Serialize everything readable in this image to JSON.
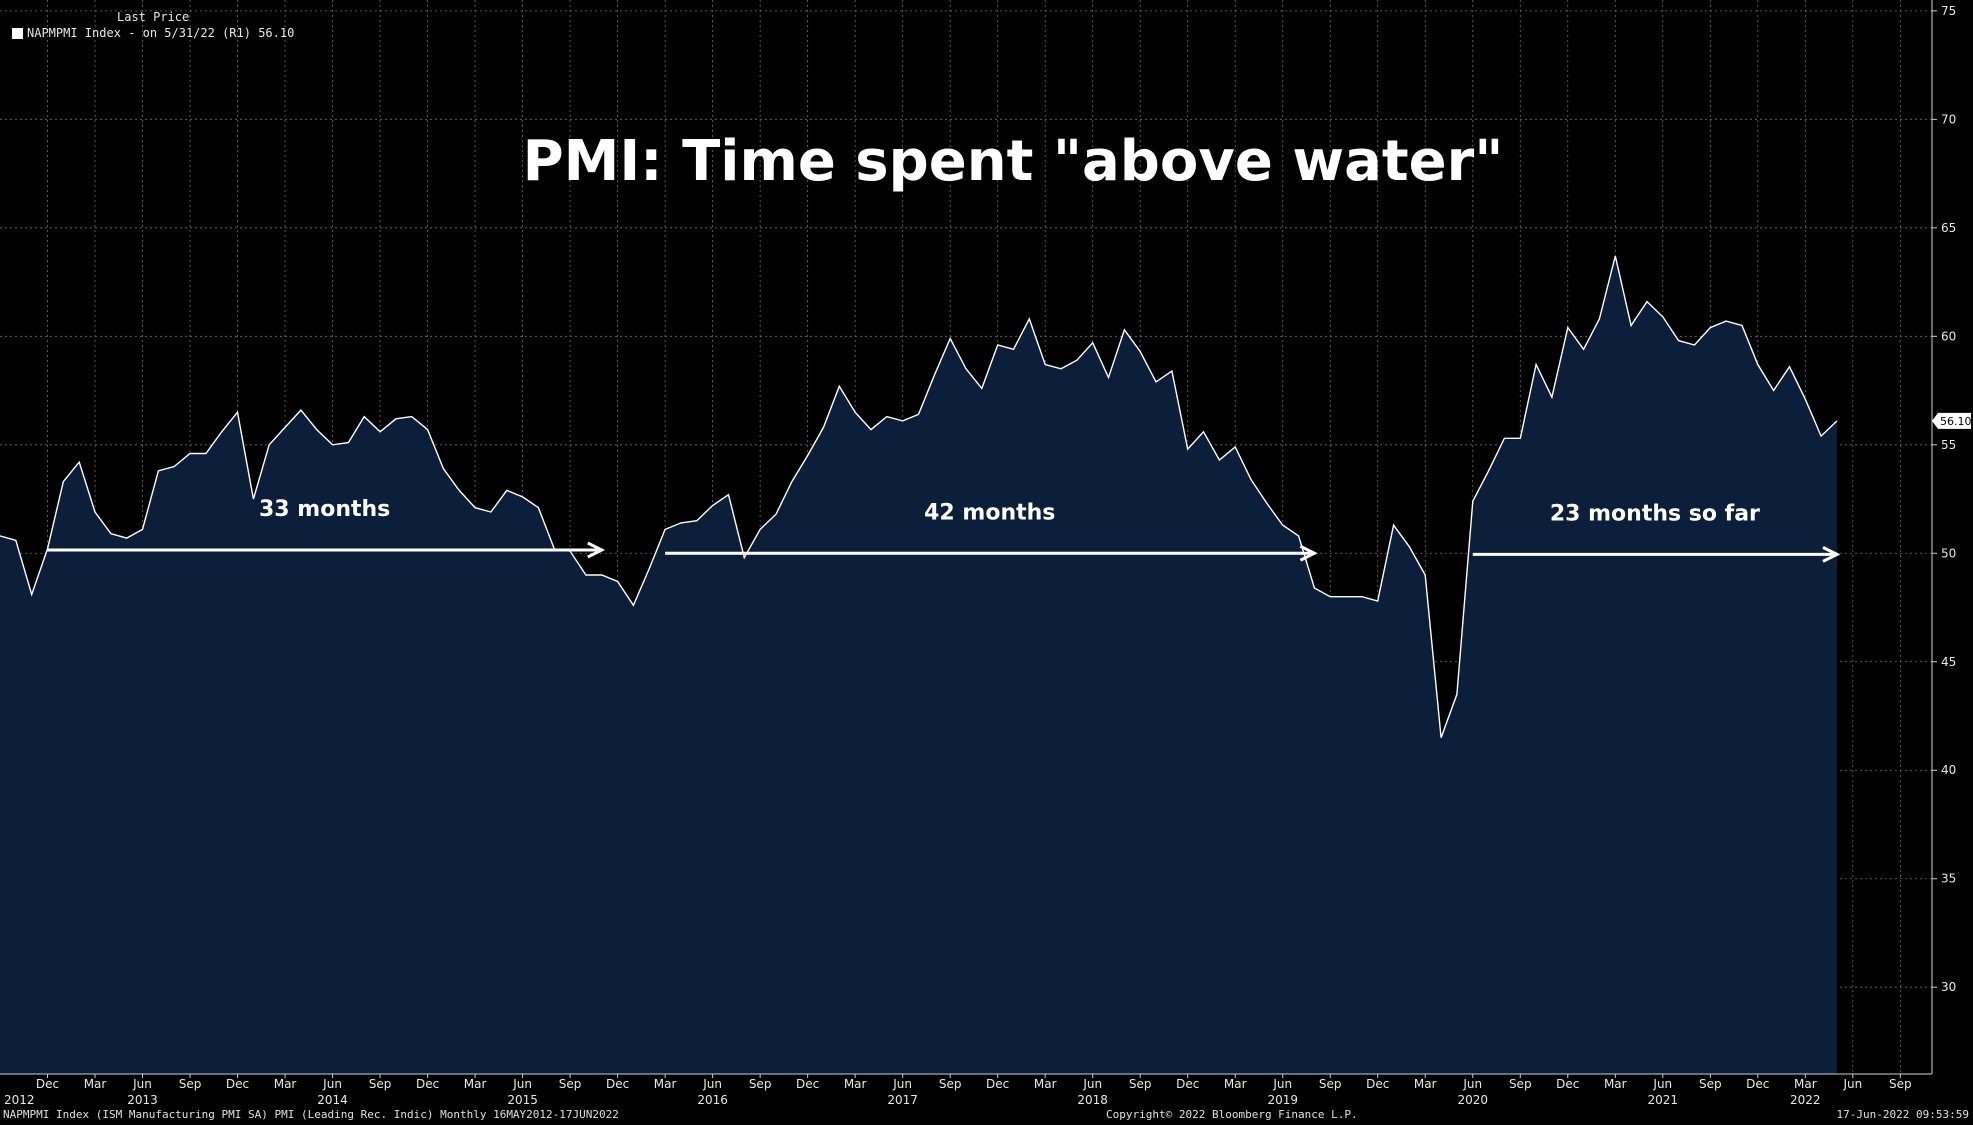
{
  "legend": {
    "header": "Last Price",
    "entry": "NAPMPMI Index -  on 5/31/22  (R1) 56.10"
  },
  "last_value_label": "56.10",
  "footer": {
    "left": "NAPMPMI Index (ISM Manufacturing PMI SA) PMI (Leading Rec. Indic)  Monthly 16MAY2012-17JUN2022",
    "center": "Copyright© 2022 Bloomberg Finance L.P.",
    "right": "17-Jun-2022 09:53:59"
  },
  "colors": {
    "background": "#000000",
    "area_fill": "#0b1f3b",
    "line": "#ffffff",
    "grid": "#7a7a7a"
  },
  "chart_data": {
    "type": "area",
    "title": "PMI: Time spent \"above water\"",
    "y_axis_position": "right",
    "ylim": [
      26,
      75.5
    ],
    "yticks": [
      30,
      35,
      40,
      45,
      50,
      55,
      60,
      65,
      70,
      75
    ],
    "x_start": "2012-09",
    "x_end": "2022-11",
    "series": [
      {
        "x": [
          "2012-09",
          "2012-10",
          "2012-11",
          "2012-12",
          "2013-01",
          "2013-02",
          "2013-03",
          "2013-04",
          "2013-05",
          "2013-06",
          "2013-07",
          "2013-08",
          "2013-09",
          "2013-10",
          "2013-11",
          "2013-12",
          "2014-01",
          "2014-02",
          "2014-03",
          "2014-04",
          "2014-05",
          "2014-06",
          "2014-07",
          "2014-08",
          "2014-09",
          "2014-10",
          "2014-11",
          "2014-12",
          "2015-01",
          "2015-02",
          "2015-03",
          "2015-04",
          "2015-05",
          "2015-06",
          "2015-07",
          "2015-08",
          "2015-09",
          "2015-10",
          "2015-11",
          "2015-12",
          "2016-01",
          "2016-02",
          "2016-03",
          "2016-04",
          "2016-05",
          "2016-06",
          "2016-07",
          "2016-08",
          "2016-09",
          "2016-10",
          "2016-11",
          "2016-12",
          "2017-01",
          "2017-02",
          "2017-03",
          "2017-04",
          "2017-05",
          "2017-06",
          "2017-07",
          "2017-08",
          "2017-09",
          "2017-10",
          "2017-11",
          "2017-12",
          "2018-01",
          "2018-02",
          "2018-03",
          "2018-04",
          "2018-05",
          "2018-06",
          "2018-07",
          "2018-08",
          "2018-09",
          "2018-10",
          "2018-11",
          "2018-12",
          "2019-01",
          "2019-02",
          "2019-03",
          "2019-04",
          "2019-05",
          "2019-06",
          "2019-07",
          "2019-08",
          "2019-09",
          "2019-10",
          "2019-11",
          "2019-12",
          "2020-01",
          "2020-02",
          "2020-03",
          "2020-04",
          "2020-05",
          "2020-06",
          "2020-07",
          "2020-08",
          "2020-09",
          "2020-10",
          "2020-11",
          "2020-12",
          "2021-01",
          "2021-02",
          "2021-03",
          "2021-04",
          "2021-05",
          "2021-06",
          "2021-07",
          "2021-08",
          "2021-09",
          "2021-10",
          "2021-11",
          "2021-12",
          "2022-01",
          "2022-02",
          "2022-03",
          "2022-04",
          "2022-05"
        ],
        "values": [
          50.8,
          50.6,
          48.1,
          50.2,
          53.3,
          54.2,
          51.9,
          50.9,
          50.7,
          51.1,
          53.8,
          54.0,
          54.6,
          54.6,
          55.6,
          56.5,
          52.5,
          55.0,
          55.8,
          56.6,
          55.7,
          55.0,
          55.1,
          56.3,
          55.6,
          56.2,
          56.3,
          55.7,
          53.9,
          52.9,
          52.1,
          51.9,
          52.9,
          52.6,
          52.1,
          50.2,
          50.1,
          49.0,
          49.0,
          48.7,
          47.6,
          49.3,
          51.1,
          51.4,
          51.5,
          52.2,
          52.7,
          49.8,
          51.1,
          51.8,
          53.3,
          54.5,
          55.8,
          57.7,
          56.5,
          55.7,
          56.3,
          56.1,
          56.4,
          58.2,
          59.9,
          58.5,
          57.6,
          59.6,
          59.4,
          60.8,
          58.7,
          58.5,
          58.9,
          59.7,
          58.1,
          60.3,
          59.3,
          57.9,
          58.4,
          54.8,
          55.6,
          54.3,
          54.9,
          53.4,
          52.3,
          51.3,
          50.8,
          48.4,
          48.0,
          48.0,
          48.0,
          47.8,
          51.3,
          50.3,
          49.0,
          41.5,
          43.5,
          52.4,
          53.8,
          55.3,
          55.3,
          58.7,
          57.2,
          60.4,
          59.4,
          60.8,
          63.7,
          60.5,
          61.6,
          60.9,
          59.8,
          59.6,
          60.4,
          60.7,
          60.5,
          58.7,
          57.5,
          58.6,
          57.1,
          55.4,
          56.1
        ]
      }
    ],
    "x_tick_labels": [
      {
        "x": "2012-12",
        "label": "Dec"
      },
      {
        "x": "2013-03",
        "label": "Mar"
      },
      {
        "x": "2013-06",
        "label": "Jun"
      },
      {
        "x": "2013-09",
        "label": "Sep"
      },
      {
        "x": "2013-12",
        "label": "Dec"
      },
      {
        "x": "2014-03",
        "label": "Mar"
      },
      {
        "x": "2014-06",
        "label": "Jun"
      },
      {
        "x": "2014-09",
        "label": "Sep"
      },
      {
        "x": "2014-12",
        "label": "Dec"
      },
      {
        "x": "2015-03",
        "label": "Mar"
      },
      {
        "x": "2015-06",
        "label": "Jun"
      },
      {
        "x": "2015-09",
        "label": "Sep"
      },
      {
        "x": "2015-12",
        "label": "Dec"
      },
      {
        "x": "2016-03",
        "label": "Mar"
      },
      {
        "x": "2016-06",
        "label": "Jun"
      },
      {
        "x": "2016-09",
        "label": "Sep"
      },
      {
        "x": "2016-12",
        "label": "Dec"
      },
      {
        "x": "2017-03",
        "label": "Mar"
      },
      {
        "x": "2017-06",
        "label": "Jun"
      },
      {
        "x": "2017-09",
        "label": "Sep"
      },
      {
        "x": "2017-12",
        "label": "Dec"
      },
      {
        "x": "2018-03",
        "label": "Mar"
      },
      {
        "x": "2018-06",
        "label": "Jun"
      },
      {
        "x": "2018-09",
        "label": "Sep"
      },
      {
        "x": "2018-12",
        "label": "Dec"
      },
      {
        "x": "2019-03",
        "label": "Mar"
      },
      {
        "x": "2019-06",
        "label": "Jun"
      },
      {
        "x": "2019-09",
        "label": "Sep"
      },
      {
        "x": "2019-12",
        "label": "Dec"
      },
      {
        "x": "2020-03",
        "label": "Mar"
      },
      {
        "x": "2020-06",
        "label": "Jun"
      },
      {
        "x": "2020-09",
        "label": "Sep"
      },
      {
        "x": "2020-12",
        "label": "Dec"
      },
      {
        "x": "2021-03",
        "label": "Mar"
      },
      {
        "x": "2021-06",
        "label": "Jun"
      },
      {
        "x": "2021-09",
        "label": "Sep"
      },
      {
        "x": "2021-12",
        "label": "Dec"
      },
      {
        "x": "2022-03",
        "label": "Mar"
      },
      {
        "x": "2022-06",
        "label": "Jun"
      },
      {
        "x": "2022-09",
        "label": "Sep"
      }
    ],
    "year_labels": [
      {
        "x": "2012-09",
        "label": "2012"
      },
      {
        "x": "2013-06",
        "label": "2013"
      },
      {
        "x": "2014-06",
        "label": "2014"
      },
      {
        "x": "2015-06",
        "label": "2015"
      },
      {
        "x": "2016-06",
        "label": "2016"
      },
      {
        "x": "2017-06",
        "label": "2017"
      },
      {
        "x": "2018-06",
        "label": "2018"
      },
      {
        "x": "2019-06",
        "label": "2019"
      },
      {
        "x": "2020-06",
        "label": "2020"
      },
      {
        "x": "2021-06",
        "label": "2021"
      },
      {
        "x": "2022-03",
        "label": "2022"
      }
    ],
    "annotations": [
      {
        "label": "33 months",
        "x_start": "2012-12",
        "x_end": "2015-11",
        "y": 50.15
      },
      {
        "label": "42 months",
        "x_start": "2016-03",
        "x_end": "2019-08",
        "y": 50.0
      },
      {
        "label": "23 months so far",
        "x_start": "2020-06",
        "x_end": "2022-05",
        "y": 49.95
      }
    ]
  }
}
